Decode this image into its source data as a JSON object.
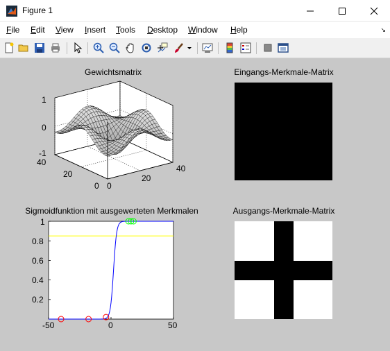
{
  "window": {
    "title": "Figure 1"
  },
  "menu": {
    "items": [
      {
        "label": "File",
        "key": "F",
        "rest": "ile"
      },
      {
        "label": "Edit",
        "key": "E",
        "rest": "dit"
      },
      {
        "label": "View",
        "key": "V",
        "rest": "iew"
      },
      {
        "label": "Insert",
        "key": "I",
        "rest": "nsert"
      },
      {
        "label": "Tools",
        "key": "T",
        "rest": "ools"
      },
      {
        "label": "Desktop",
        "key": "D",
        "rest": "esktop"
      },
      {
        "label": "Window",
        "key": "W",
        "rest": "indow"
      },
      {
        "label": "Help",
        "key": "H",
        "rest": "elp"
      }
    ]
  },
  "toolbar": {
    "icons": [
      "new-figure-icon",
      "open-file-icon",
      "save-figure-icon",
      "print-figure-icon",
      "edit-plot-icon",
      "zoom-in-icon",
      "zoom-out-icon",
      "pan-icon",
      "rotate-3d-icon",
      "data-cursor-icon",
      "brush-icon",
      "brush-dropdown-icon",
      "link-plot-icon",
      "insert-colorbar-icon",
      "insert-legend-icon",
      "hide-plot-tools-icon",
      "show-plot-tools-icon"
    ]
  },
  "subplots": {
    "weights": {
      "title": "Gewichtsmatrix",
      "z_ticks": [
        "1",
        "0",
        "-1"
      ],
      "y_ticks": [
        "40",
        "20",
        "0"
      ],
      "x_ticks": [
        "0",
        "20",
        "40"
      ]
    },
    "input": {
      "title": "Eingangs-Merkmale-Matrix"
    },
    "sigmoid": {
      "title": "Sigmoidfunktion mit ausgewerteten Merkmalen",
      "y_ticks": [
        "1",
        "0.8",
        "0.6",
        "0.4",
        "0.2"
      ],
      "x_ticks": [
        "-50",
        "0",
        "50"
      ]
    },
    "output": {
      "title": "Ausgangs-Merkmale-Matrix"
    }
  },
  "chart_data": [
    {
      "type": "surface",
      "title": "Gewichtsmatrix",
      "xlim": [
        0,
        40
      ],
      "ylim": [
        0,
        40
      ],
      "zlim": [
        -1,
        1
      ],
      "grid": true
    },
    {
      "type": "heatmap",
      "title": "Eingangs-Merkmale-Matrix",
      "fill": "#000000"
    },
    {
      "type": "line",
      "title": "Sigmoidfunktion mit ausgewerteten Merkmalen",
      "xlim": [
        -50,
        50
      ],
      "ylim": [
        0,
        1
      ],
      "series": [
        {
          "color": "#0000ff",
          "steepness": 0.8,
          "x": [
            -50,
            -40,
            -30,
            -20,
            -10,
            -5,
            -2,
            0,
            2,
            5,
            10,
            20,
            30,
            40,
            50
          ]
        },
        {
          "color": "#ffff00",
          "constant": 0.85
        },
        {
          "color": "#ff0000",
          "marker": "o",
          "x": [
            -40,
            -18,
            -4
          ],
          "y": [
            0,
            0,
            0.02
          ]
        },
        {
          "color": "#00ff00",
          "marker": "o",
          "x": [
            14,
            16,
            18
          ],
          "y": [
            1,
            1,
            1
          ]
        }
      ]
    },
    {
      "type": "heatmap",
      "title": "Ausgangs-Merkmale-Matrix",
      "pattern": "cross",
      "colors": {
        "background": "#ffffff",
        "cross": "#000000"
      }
    }
  ]
}
